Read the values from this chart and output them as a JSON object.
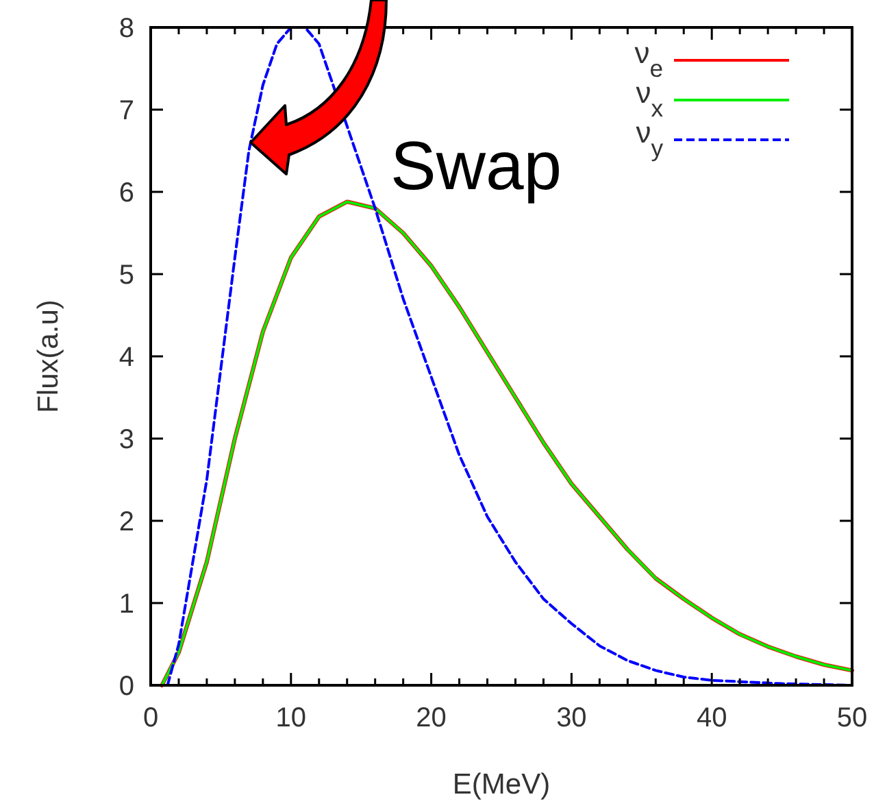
{
  "chart_data": {
    "type": "line",
    "xlabel": "E(MeV)",
    "ylabel": "Flux(a.u)",
    "annotations": [
      "Swap"
    ],
    "xlim": [
      0,
      50
    ],
    "ylim": [
      0,
      8
    ],
    "xticks": [
      0,
      {
        "value": 2,
        "label": null
      },
      {
        "value": 4,
        "label": null
      },
      {
        "value": 6,
        "label": null
      },
      {
        "value": 8,
        "label": null
      },
      10,
      {
        "value": 12,
        "label": null
      },
      {
        "value": 14,
        "label": null
      },
      {
        "value": 16,
        "label": null
      },
      {
        "value": 18,
        "label": null
      },
      20,
      {
        "value": 22,
        "label": null
      },
      {
        "value": 24,
        "label": null
      },
      {
        "value": 26,
        "label": null
      },
      {
        "value": 28,
        "label": null
      },
      30,
      {
        "value": 32,
        "label": null
      },
      {
        "value": 34,
        "label": null
      },
      {
        "value": 36,
        "label": null
      },
      {
        "value": 38,
        "label": null
      },
      40,
      {
        "value": 42,
        "label": null
      },
      {
        "value": 44,
        "label": null
      },
      {
        "value": 46,
        "label": null
      },
      {
        "value": 48,
        "label": null
      },
      50
    ],
    "yticks": [
      0,
      1,
      2,
      3,
      4,
      5,
      6,
      7,
      8
    ],
    "grid": false,
    "legend": "top right",
    "marker": "none",
    "series": [
      {
        "name": "ν$_{e}$",
        "color": "#ff0000",
        "line_style": "solid",
        "x": [
          0.8,
          2,
          4,
          6,
          8,
          10,
          12,
          14,
          16,
          18,
          20,
          22,
          24,
          26,
          28,
          30,
          32,
          34,
          36,
          38,
          40,
          42,
          44,
          46,
          48,
          50
        ],
        "values": [
          0,
          0.4,
          1.5,
          3,
          4.3,
          5.2,
          5.7,
          5.88,
          5.8,
          5.5,
          5.1,
          4.6,
          4.05,
          3.5,
          2.95,
          2.45,
          2.05,
          1.65,
          1.3,
          1.05,
          0.82,
          0.62,
          0.47,
          0.35,
          0.25,
          0.18
        ]
      },
      {
        "name": "ν$_{x}$",
        "color": "#00ee00",
        "line_style": "solid",
        "x": [
          0.8,
          2,
          4,
          6,
          8,
          10,
          12,
          14,
          16,
          18,
          20,
          22,
          24,
          26,
          28,
          30,
          32,
          34,
          36,
          38,
          40,
          42,
          44,
          46,
          48,
          50
        ],
        "values": [
          0,
          0.4,
          1.5,
          3,
          4.3,
          5.2,
          5.7,
          5.88,
          5.8,
          5.5,
          5.1,
          4.6,
          4.05,
          3.5,
          2.95,
          2.45,
          2.05,
          1.65,
          1.3,
          1.05,
          0.82,
          0.62,
          0.47,
          0.35,
          0.25,
          0.18
        ]
      },
      {
        "name": "ν$_{y}$",
        "color": "#0000ff",
        "line_style": "dashed",
        "x": [
          1.2,
          2,
          4,
          6,
          7,
          8,
          9,
          10,
          11,
          12,
          13,
          14,
          16,
          18,
          20,
          22,
          24,
          26,
          28,
          30,
          32,
          34,
          36,
          38,
          40,
          45,
          50
        ],
        "values": [
          0,
          0.5,
          2.5,
          5.2,
          6.5,
          7.3,
          7.8,
          8,
          8,
          7.8,
          7.3,
          6.8,
          5.8,
          4.7,
          3.75,
          2.8,
          2.05,
          1.5,
          1.05,
          0.75,
          0.48,
          0.3,
          0.18,
          0.1,
          0.06,
          0.02,
          0
        ]
      }
    ]
  }
}
